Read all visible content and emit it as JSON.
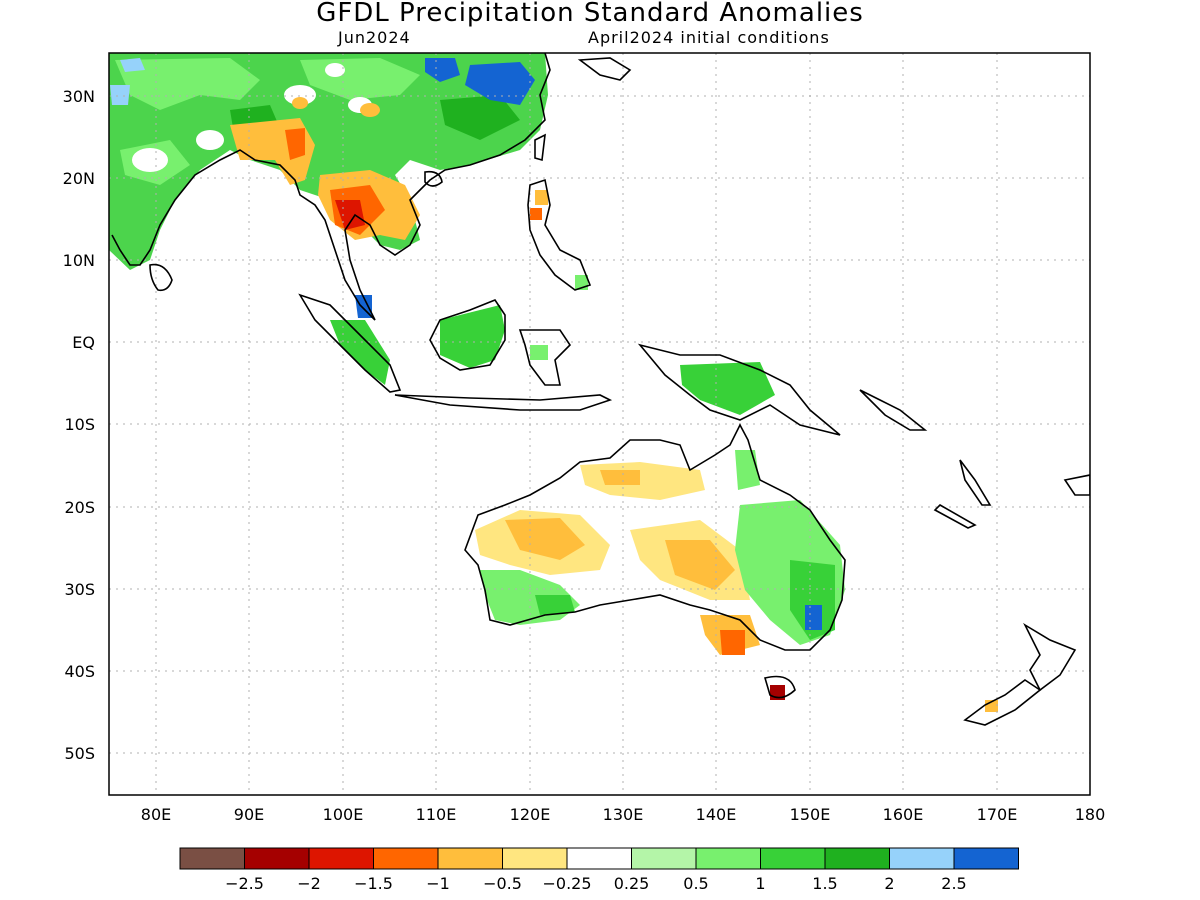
{
  "title": "GFDL Precipitation Standard Anomalies",
  "subtitle_left": "Jun2024",
  "subtitle_right": "April2024 initial conditions",
  "map": {
    "lon_range": [
      75,
      180
    ],
    "lat_range": [
      -55,
      35
    ],
    "lat_labels": [
      "30N",
      "20N",
      "10N",
      "EQ",
      "10S",
      "20S",
      "30S",
      "40S",
      "50S"
    ],
    "lat_values": [
      30,
      20,
      10,
      0,
      -10,
      -20,
      -30,
      -40,
      -50
    ],
    "lon_labels": [
      "80E",
      "90E",
      "100E",
      "110E",
      "120E",
      "130E",
      "140E",
      "150E",
      "160E",
      "170E",
      "180"
    ],
    "lon_values": [
      80,
      90,
      100,
      110,
      120,
      130,
      140,
      150,
      160,
      170,
      180
    ],
    "grid": "dotted"
  },
  "colorbar": {
    "colors": [
      "#7a4f44",
      "#a50000",
      "#dd1500",
      "#ff6600",
      "#ffbe3c",
      "#ffe680",
      "#ffffff",
      "#b4f5a8",
      "#78f06e",
      "#38d138",
      "#1fb11f",
      "#96d2fa",
      "#1464d2"
    ],
    "labels": [
      "-2.5",
      "-2",
      "-1.5",
      "-1",
      "-0.5",
      "-0.25",
      "0.25",
      "0.5",
      "1",
      "1.5",
      "2",
      "2.5"
    ]
  },
  "palette": {
    "coast": "#000000",
    "frame": "#000000",
    "grid": "#b0b0b0"
  }
}
